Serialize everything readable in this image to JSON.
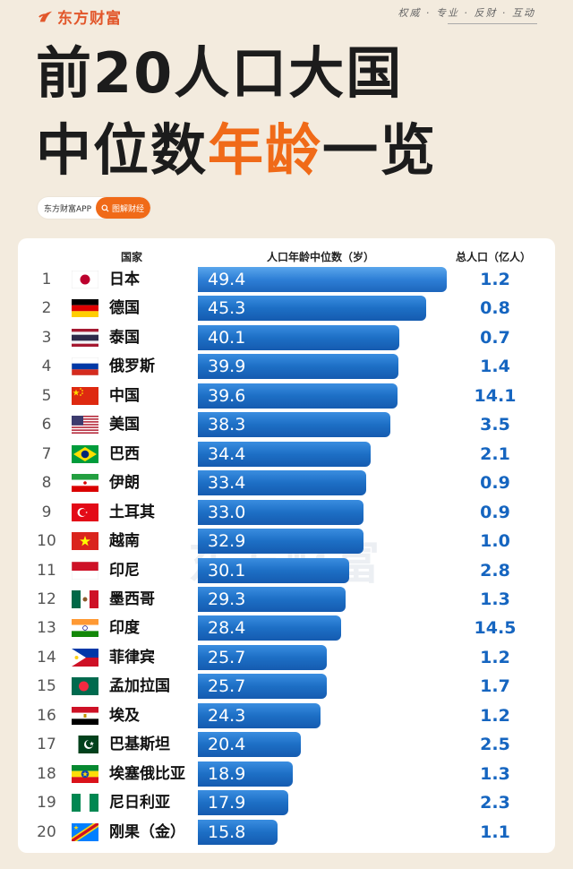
{
  "header": {
    "brand": "东方财富",
    "slogan": "权威 · 专业 · 反财 · 互动"
  },
  "title": {
    "line1": "前20人口大国",
    "line2_a": "中位数",
    "line2_highlight": "年龄",
    "line2_b": "一览",
    "highlight_color": "#f06a18"
  },
  "badge": {
    "app": "东方财富APP",
    "search": "图解财经"
  },
  "watermark": "东方财富",
  "chart_data": {
    "type": "bar",
    "orientation": "horizontal",
    "headers": {
      "country": "国家",
      "median_age": "人口年龄中位数（岁）",
      "population": "总人口（亿人）"
    },
    "bar_color": "#1d6fc5",
    "xlim": [
      0,
      50
    ],
    "rows": [
      {
        "rank": "1",
        "country": "日本",
        "flag": "japan-flag",
        "median_age": 49.4,
        "median_age_label": "49.4",
        "population": "1.2"
      },
      {
        "rank": "2",
        "country": "德国",
        "flag": "germany-flag",
        "median_age": 45.3,
        "median_age_label": "45.3",
        "population": "0.8"
      },
      {
        "rank": "3",
        "country": "泰国",
        "flag": "thailand-flag",
        "median_age": 40.1,
        "median_age_label": "40.1",
        "population": "0.7"
      },
      {
        "rank": "4",
        "country": "俄罗斯",
        "flag": "russia-flag",
        "median_age": 39.9,
        "median_age_label": "39.9",
        "population": "1.4"
      },
      {
        "rank": "5",
        "country": "中国",
        "flag": "china-flag",
        "median_age": 39.6,
        "median_age_label": "39.6",
        "population": "14.1"
      },
      {
        "rank": "6",
        "country": "美国",
        "flag": "usa-flag",
        "median_age": 38.3,
        "median_age_label": "38.3",
        "population": "3.5"
      },
      {
        "rank": "7",
        "country": "巴西",
        "flag": "brazil-flag",
        "median_age": 34.4,
        "median_age_label": "34.4",
        "population": "2.1"
      },
      {
        "rank": "8",
        "country": "伊朗",
        "flag": "iran-flag",
        "median_age": 33.4,
        "median_age_label": "33.4",
        "population": "0.9"
      },
      {
        "rank": "9",
        "country": "土耳其",
        "flag": "turkey-flag",
        "median_age": 33.0,
        "median_age_label": "33.0",
        "population": "0.9"
      },
      {
        "rank": "10",
        "country": "越南",
        "flag": "vietnam-flag",
        "median_age": 32.9,
        "median_age_label": "32.9",
        "population": "1.0"
      },
      {
        "rank": "11",
        "country": "印尼",
        "flag": "indonesia-flag",
        "median_age": 30.1,
        "median_age_label": "30.1",
        "population": "2.8"
      },
      {
        "rank": "12",
        "country": "墨西哥",
        "flag": "mexico-flag",
        "median_age": 29.3,
        "median_age_label": "29.3",
        "population": "1.3"
      },
      {
        "rank": "13",
        "country": "印度",
        "flag": "india-flag",
        "median_age": 28.4,
        "median_age_label": "28.4",
        "population": "14.5"
      },
      {
        "rank": "14",
        "country": "菲律宾",
        "flag": "philippines-flag",
        "median_age": 25.7,
        "median_age_label": "25.7",
        "population": "1.2"
      },
      {
        "rank": "15",
        "country": "孟加拉国",
        "flag": "bangladesh-flag",
        "median_age": 25.7,
        "median_age_label": "25.7",
        "population": "1.7"
      },
      {
        "rank": "16",
        "country": "埃及",
        "flag": "egypt-flag",
        "median_age": 24.3,
        "median_age_label": "24.3",
        "population": "1.2"
      },
      {
        "rank": "17",
        "country": "巴基斯坦",
        "flag": "pakistan-flag",
        "median_age": 20.4,
        "median_age_label": "20.4",
        "population": "2.5"
      },
      {
        "rank": "18",
        "country": "埃塞俄比亚",
        "flag": "ethiopia-flag",
        "median_age": 18.9,
        "median_age_label": "18.9",
        "population": "1.3"
      },
      {
        "rank": "19",
        "country": "尼日利亚",
        "flag": "nigeria-flag",
        "median_age": 17.9,
        "median_age_label": "17.9",
        "population": "2.3"
      },
      {
        "rank": "20",
        "country": "刚果（金）",
        "flag": "dr-congo-flag",
        "median_age": 15.8,
        "median_age_label": "15.8",
        "population": "1.1"
      }
    ]
  }
}
